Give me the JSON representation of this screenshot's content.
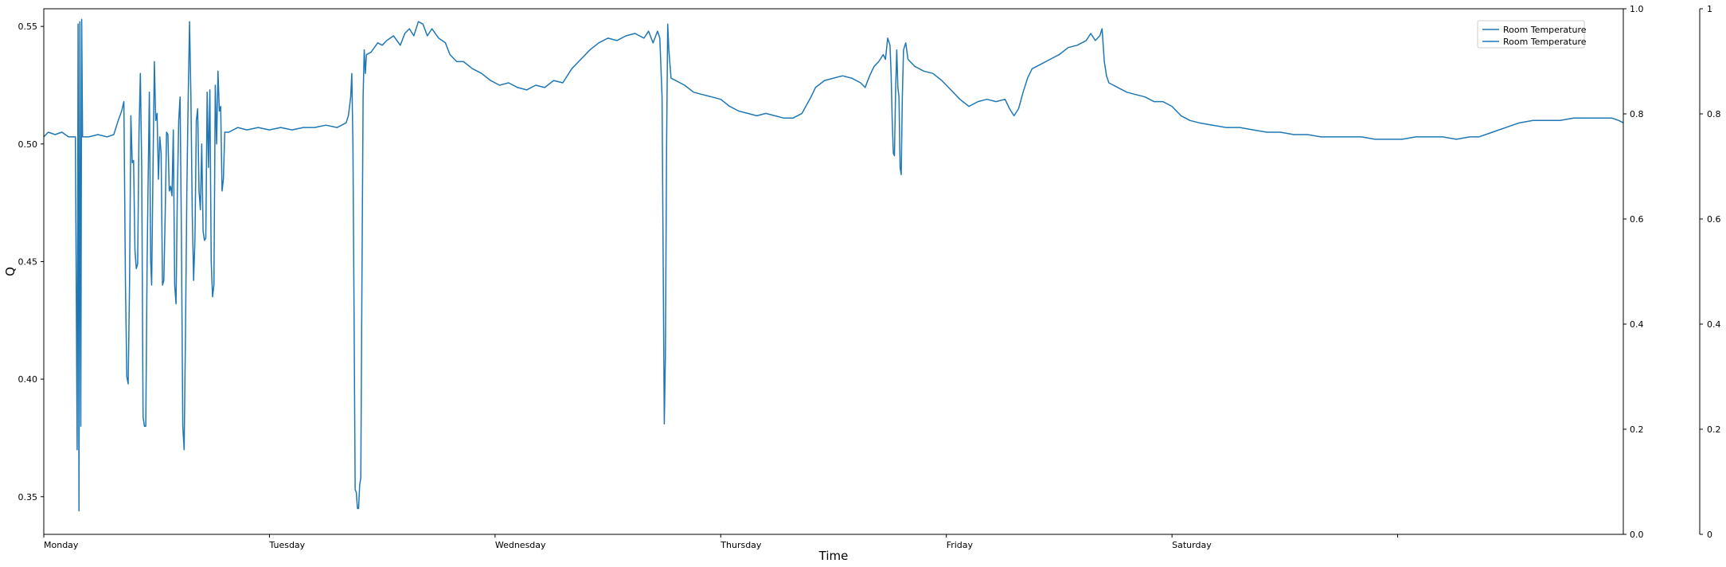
{
  "chart_data": {
    "type": "line",
    "xlabel": "Time",
    "ylabel": "Q",
    "x_ticks": [
      {
        "x": 0,
        "label": "Monday"
      },
      {
        "x": 1,
        "label": "Tuesday"
      },
      {
        "x": 2,
        "label": "Wednesday"
      },
      {
        "x": 3,
        "label": "Thursday"
      },
      {
        "x": 4,
        "label": "Friday"
      },
      {
        "x": 5,
        "label": "Saturday"
      },
      {
        "x": 6,
        "label": ""
      }
    ],
    "xlim": [
      0,
      7
    ],
    "ylim": [
      0.334,
      0.5575
    ],
    "y_ticks": [
      "0.35",
      "0.40",
      "0.45",
      "0.50",
      "0.55"
    ],
    "secondary_y_ticks": [
      "0.0",
      "0.2",
      "0.4",
      "0.6",
      "0.8",
      "1.0"
    ],
    "tertiary_y_ticks": [
      "0",
      "0.2",
      "0.4",
      "0.6",
      "0.8",
      "1"
    ],
    "grid": false,
    "legend_position": "top-right",
    "legend": [
      "Room Temperature",
      "Room Temperature"
    ],
    "color": "#1f77b4",
    "series": [
      {
        "name": "Room Temperature",
        "points": [
          [
            0.0,
            0.503
          ],
          [
            0.02,
            0.505
          ],
          [
            0.05,
            0.504
          ],
          [
            0.08,
            0.505
          ],
          [
            0.11,
            0.503
          ],
          [
            0.14,
            0.503
          ],
          [
            0.148,
            0.37
          ],
          [
            0.152,
            0.551
          ],
          [
            0.156,
            0.344
          ],
          [
            0.16,
            0.552
          ],
          [
            0.164,
            0.38
          ],
          [
            0.168,
            0.553
          ],
          [
            0.172,
            0.503
          ],
          [
            0.2,
            0.503
          ],
          [
            0.24,
            0.504
          ],
          [
            0.28,
            0.503
          ],
          [
            0.31,
            0.504
          ],
          [
            0.33,
            0.51
          ],
          [
            0.345,
            0.514
          ],
          [
            0.355,
            0.518
          ],
          [
            0.362,
            0.44
          ],
          [
            0.368,
            0.401
          ],
          [
            0.374,
            0.398
          ],
          [
            0.38,
            0.44
          ],
          [
            0.386,
            0.512
          ],
          [
            0.392,
            0.492
          ],
          [
            0.398,
            0.493
          ],
          [
            0.404,
            0.455
          ],
          [
            0.41,
            0.447
          ],
          [
            0.416,
            0.449
          ],
          [
            0.422,
            0.505
          ],
          [
            0.428,
            0.53
          ],
          [
            0.434,
            0.49
          ],
          [
            0.44,
            0.384
          ],
          [
            0.446,
            0.38
          ],
          [
            0.452,
            0.38
          ],
          [
            0.458,
            0.45
          ],
          [
            0.462,
            0.48
          ],
          [
            0.468,
            0.522
          ],
          [
            0.474,
            0.45
          ],
          [
            0.478,
            0.44
          ],
          [
            0.484,
            0.49
          ],
          [
            0.49,
            0.535
          ],
          [
            0.496,
            0.51
          ],
          [
            0.502,
            0.513
          ],
          [
            0.508,
            0.485
          ],
          [
            0.514,
            0.503
          ],
          [
            0.52,
            0.496
          ],
          [
            0.526,
            0.44
          ],
          [
            0.532,
            0.442
          ],
          [
            0.538,
            0.47
          ],
          [
            0.544,
            0.505
          ],
          [
            0.55,
            0.504
          ],
          [
            0.556,
            0.48
          ],
          [
            0.562,
            0.482
          ],
          [
            0.568,
            0.478
          ],
          [
            0.574,
            0.506
          ],
          [
            0.58,
            0.44
          ],
          [
            0.586,
            0.432
          ],
          [
            0.592,
            0.48
          ],
          [
            0.598,
            0.51
          ],
          [
            0.604,
            0.52
          ],
          [
            0.61,
            0.46
          ],
          [
            0.616,
            0.38
          ],
          [
            0.622,
            0.37
          ],
          [
            0.628,
            0.42
          ],
          [
            0.634,
            0.48
          ],
          [
            0.64,
            0.52
          ],
          [
            0.646,
            0.552
          ],
          [
            0.652,
            0.52
          ],
          [
            0.658,
            0.47
          ],
          [
            0.664,
            0.442
          ],
          [
            0.67,
            0.46
          ],
          [
            0.676,
            0.51
          ],
          [
            0.682,
            0.515
          ],
          [
            0.688,
            0.48
          ],
          [
            0.694,
            0.472
          ],
          [
            0.7,
            0.5
          ],
          [
            0.706,
            0.463
          ],
          [
            0.712,
            0.459
          ],
          [
            0.718,
            0.46
          ],
          [
            0.724,
            0.522
          ],
          [
            0.73,
            0.49
          ],
          [
            0.736,
            0.523
          ],
          [
            0.742,
            0.45
          ],
          [
            0.748,
            0.435
          ],
          [
            0.754,
            0.44
          ],
          [
            0.76,
            0.525
          ],
          [
            0.766,
            0.5
          ],
          [
            0.772,
            0.531
          ],
          [
            0.778,
            0.514
          ],
          [
            0.784,
            0.516
          ],
          [
            0.79,
            0.48
          ],
          [
            0.796,
            0.485
          ],
          [
            0.802,
            0.505
          ],
          [
            0.82,
            0.505
          ],
          [
            0.86,
            0.507
          ],
          [
            0.9,
            0.506
          ],
          [
            0.95,
            0.507
          ],
          [
            1.0,
            0.506
          ],
          [
            1.05,
            0.507
          ],
          [
            1.1,
            0.506
          ],
          [
            1.15,
            0.507
          ],
          [
            1.2,
            0.507
          ],
          [
            1.25,
            0.508
          ],
          [
            1.3,
            0.507
          ],
          [
            1.32,
            0.508
          ],
          [
            1.34,
            0.509
          ],
          [
            1.35,
            0.512
          ],
          [
            1.36,
            0.52
          ],
          [
            1.365,
            0.53
          ],
          [
            1.37,
            0.5
          ],
          [
            1.375,
            0.43
          ],
          [
            1.38,
            0.353
          ],
          [
            1.385,
            0.352
          ],
          [
            1.39,
            0.345
          ],
          [
            1.395,
            0.345
          ],
          [
            1.4,
            0.355
          ],
          [
            1.405,
            0.358
          ],
          [
            1.41,
            0.44
          ],
          [
            1.415,
            0.52
          ],
          [
            1.42,
            0.54
          ],
          [
            1.425,
            0.53
          ],
          [
            1.43,
            0.538
          ],
          [
            1.45,
            0.539
          ],
          [
            1.48,
            0.543
          ],
          [
            1.5,
            0.542
          ],
          [
            1.52,
            0.544
          ],
          [
            1.55,
            0.546
          ],
          [
            1.58,
            0.542
          ],
          [
            1.6,
            0.547
          ],
          [
            1.62,
            0.549
          ],
          [
            1.64,
            0.546
          ],
          [
            1.66,
            0.552
          ],
          [
            1.68,
            0.551
          ],
          [
            1.7,
            0.546
          ],
          [
            1.72,
            0.549
          ],
          [
            1.75,
            0.545
          ],
          [
            1.78,
            0.543
          ],
          [
            1.8,
            0.538
          ],
          [
            1.83,
            0.535
          ],
          [
            1.86,
            0.535
          ],
          [
            1.9,
            0.532
          ],
          [
            1.94,
            0.53
          ],
          [
            1.98,
            0.527
          ],
          [
            2.02,
            0.525
          ],
          [
            2.06,
            0.526
          ],
          [
            2.1,
            0.524
          ],
          [
            2.14,
            0.523
          ],
          [
            2.18,
            0.525
          ],
          [
            2.22,
            0.524
          ],
          [
            2.26,
            0.527
          ],
          [
            2.3,
            0.526
          ],
          [
            2.34,
            0.532
          ],
          [
            2.38,
            0.536
          ],
          [
            2.42,
            0.54
          ],
          [
            2.46,
            0.543
          ],
          [
            2.5,
            0.545
          ],
          [
            2.54,
            0.544
          ],
          [
            2.58,
            0.546
          ],
          [
            2.62,
            0.547
          ],
          [
            2.66,
            0.545
          ],
          [
            2.68,
            0.548
          ],
          [
            2.7,
            0.543
          ],
          [
            2.72,
            0.548
          ],
          [
            2.73,
            0.545
          ],
          [
            2.74,
            0.52
          ],
          [
            2.745,
            0.45
          ],
          [
            2.75,
            0.381
          ],
          [
            2.755,
            0.41
          ],
          [
            2.76,
            0.5
          ],
          [
            2.765,
            0.551
          ],
          [
            2.77,
            0.54
          ],
          [
            2.78,
            0.528
          ],
          [
            2.8,
            0.527
          ],
          [
            2.84,
            0.525
          ],
          [
            2.88,
            0.522
          ],
          [
            2.92,
            0.521
          ],
          [
            2.96,
            0.52
          ],
          [
            3.0,
            0.519
          ],
          [
            3.04,
            0.516
          ],
          [
            3.08,
            0.514
          ],
          [
            3.12,
            0.513
          ],
          [
            3.16,
            0.512
          ],
          [
            3.2,
            0.513
          ],
          [
            3.24,
            0.512
          ],
          [
            3.28,
            0.511
          ],
          [
            3.32,
            0.511
          ],
          [
            3.36,
            0.513
          ],
          [
            3.4,
            0.52
          ],
          [
            3.42,
            0.524
          ],
          [
            3.46,
            0.527
          ],
          [
            3.5,
            0.528
          ],
          [
            3.54,
            0.529
          ],
          [
            3.58,
            0.528
          ],
          [
            3.62,
            0.526
          ],
          [
            3.64,
            0.524
          ],
          [
            3.66,
            0.529
          ],
          [
            3.68,
            0.533
          ],
          [
            3.7,
            0.535
          ],
          [
            3.72,
            0.538
          ],
          [
            3.73,
            0.536
          ],
          [
            3.74,
            0.545
          ],
          [
            3.75,
            0.542
          ],
          [
            3.755,
            0.53
          ],
          [
            3.76,
            0.51
          ],
          [
            3.765,
            0.496
          ],
          [
            3.77,
            0.495
          ],
          [
            3.775,
            0.522
          ],
          [
            3.78,
            0.54
          ],
          [
            3.785,
            0.524
          ],
          [
            3.79,
            0.52
          ],
          [
            3.795,
            0.49
          ],
          [
            3.8,
            0.487
          ],
          [
            3.805,
            0.52
          ],
          [
            3.81,
            0.54
          ],
          [
            3.82,
            0.543
          ],
          [
            3.83,
            0.536
          ],
          [
            3.86,
            0.533
          ],
          [
            3.9,
            0.531
          ],
          [
            3.94,
            0.53
          ],
          [
            3.98,
            0.527
          ],
          [
            4.02,
            0.523
          ],
          [
            4.06,
            0.519
          ],
          [
            4.1,
            0.516
          ],
          [
            4.14,
            0.518
          ],
          [
            4.18,
            0.519
          ],
          [
            4.22,
            0.518
          ],
          [
            4.26,
            0.519
          ],
          [
            4.28,
            0.515
          ],
          [
            4.3,
            0.512
          ],
          [
            4.32,
            0.515
          ],
          [
            4.34,
            0.522
          ],
          [
            4.36,
            0.528
          ],
          [
            4.38,
            0.532
          ],
          [
            4.42,
            0.534
          ],
          [
            4.46,
            0.536
          ],
          [
            4.5,
            0.538
          ],
          [
            4.54,
            0.541
          ],
          [
            4.58,
            0.542
          ],
          [
            4.62,
            0.544
          ],
          [
            4.64,
            0.547
          ],
          [
            4.66,
            0.544
          ],
          [
            4.68,
            0.546
          ],
          [
            4.69,
            0.549
          ],
          [
            4.7,
            0.535
          ],
          [
            4.71,
            0.529
          ],
          [
            4.72,
            0.526
          ],
          [
            4.76,
            0.524
          ],
          [
            4.8,
            0.522
          ],
          [
            4.84,
            0.521
          ],
          [
            4.88,
            0.52
          ],
          [
            4.92,
            0.518
          ],
          [
            4.96,
            0.518
          ],
          [
            5.0,
            0.516
          ],
          [
            5.04,
            0.512
          ],
          [
            5.08,
            0.51
          ],
          [
            5.12,
            0.509
          ],
          [
            5.18,
            0.508
          ],
          [
            5.24,
            0.507
          ],
          [
            5.3,
            0.507
          ],
          [
            5.36,
            0.506
          ],
          [
            5.42,
            0.505
          ],
          [
            5.48,
            0.505
          ],
          [
            5.54,
            0.504
          ],
          [
            5.6,
            0.504
          ],
          [
            5.66,
            0.503
          ],
          [
            5.72,
            0.503
          ],
          [
            5.78,
            0.503
          ],
          [
            5.84,
            0.503
          ],
          [
            5.9,
            0.502
          ],
          [
            5.96,
            0.502
          ],
          [
            6.02,
            0.502
          ],
          [
            6.08,
            0.503
          ],
          [
            6.14,
            0.503
          ],
          [
            6.2,
            0.503
          ],
          [
            6.26,
            0.502
          ],
          [
            6.32,
            0.503
          ],
          [
            6.36,
            0.503
          ],
          [
            6.42,
            0.505
          ],
          [
            6.48,
            0.507
          ],
          [
            6.54,
            0.509
          ],
          [
            6.6,
            0.51
          ],
          [
            6.66,
            0.51
          ],
          [
            6.72,
            0.51
          ],
          [
            6.78,
            0.511
          ],
          [
            6.84,
            0.511
          ],
          [
            6.9,
            0.511
          ],
          [
            6.95,
            0.511
          ],
          [
            6.98,
            0.51
          ],
          [
            7.0,
            0.509
          ]
        ]
      }
    ]
  }
}
